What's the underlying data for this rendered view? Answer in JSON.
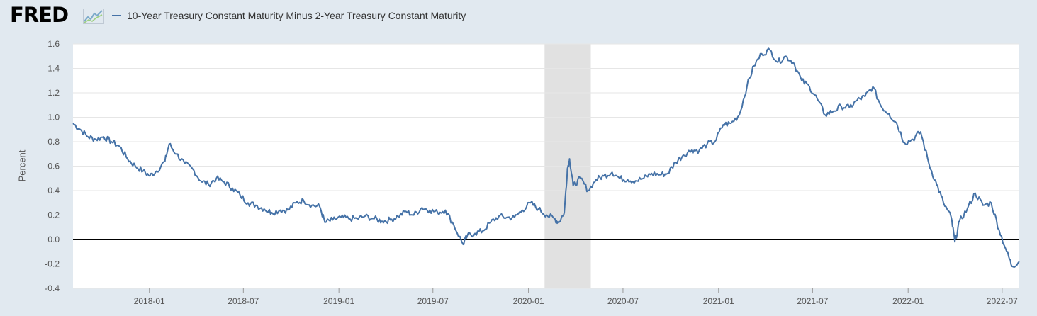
{
  "brand": {
    "name": "FRED",
    "icon": "line-chart-icon"
  },
  "colors": {
    "background": "#e1e9f0",
    "plot_background": "#ffffff",
    "series": "#4572a7",
    "recession": "#e1e1e1",
    "zero_line": "#000000"
  },
  "chart_data": {
    "type": "line",
    "title": "",
    "xlabel": "",
    "ylabel": "Percent",
    "grid": true,
    "legend_position": "top-left",
    "ylim": [
      -0.4,
      1.6
    ],
    "xlim": [
      "2017-08-07",
      "2022-08-03"
    ],
    "yticks": [
      "1.6",
      "1.4",
      "1.2",
      "1.0",
      "0.8",
      "0.6",
      "0.4",
      "0.2",
      "0.0",
      "-0.2",
      "-0.4"
    ],
    "xticks": [
      "2018-01",
      "2018-07",
      "2019-01",
      "2019-07",
      "2020-01",
      "2020-07",
      "2021-01",
      "2021-07",
      "2022-01",
      "2022-07"
    ],
    "reference_line": {
      "y": 0.0
    },
    "recession_shading": [
      {
        "start": "2020-02-01",
        "end": "2020-04-30"
      }
    ],
    "series": [
      {
        "name": "10-Year Treasury Constant Maturity Minus 2-Year Treasury Constant Maturity",
        "points": [
          [
            "2017-08-07",
            0.95
          ],
          [
            "2017-08-21",
            0.9
          ],
          [
            "2017-09-05",
            0.84
          ],
          [
            "2017-09-20",
            0.82
          ],
          [
            "2017-10-05",
            0.84
          ],
          [
            "2017-10-20",
            0.8
          ],
          [
            "2017-11-05",
            0.76
          ],
          [
            "2017-11-20",
            0.66
          ],
          [
            "2017-12-05",
            0.6
          ],
          [
            "2017-12-20",
            0.56
          ],
          [
            "2018-01-02",
            0.52
          ],
          [
            "2018-01-15",
            0.56
          ],
          [
            "2018-01-31",
            0.64
          ],
          [
            "2018-02-08",
            0.78
          ],
          [
            "2018-02-22",
            0.7
          ],
          [
            "2018-03-10",
            0.62
          ],
          [
            "2018-03-25",
            0.58
          ],
          [
            "2018-04-10",
            0.48
          ],
          [
            "2018-04-25",
            0.45
          ],
          [
            "2018-05-10",
            0.5
          ],
          [
            "2018-05-25",
            0.47
          ],
          [
            "2018-06-10",
            0.42
          ],
          [
            "2018-06-25",
            0.36
          ],
          [
            "2018-07-10",
            0.3
          ],
          [
            "2018-07-25",
            0.28
          ],
          [
            "2018-08-10",
            0.25
          ],
          [
            "2018-08-25",
            0.22
          ],
          [
            "2018-09-10",
            0.24
          ],
          [
            "2018-09-25",
            0.24
          ],
          [
            "2018-10-10",
            0.3
          ],
          [
            "2018-10-25",
            0.32
          ],
          [
            "2018-11-10",
            0.28
          ],
          [
            "2018-11-25",
            0.27
          ],
          [
            "2018-12-05",
            0.14
          ],
          [
            "2018-12-20",
            0.16
          ],
          [
            "2019-01-05",
            0.18
          ],
          [
            "2019-01-20",
            0.17
          ],
          [
            "2019-02-05",
            0.17
          ],
          [
            "2019-02-20",
            0.19
          ],
          [
            "2019-03-10",
            0.17
          ],
          [
            "2019-03-25",
            0.15
          ],
          [
            "2019-04-10",
            0.16
          ],
          [
            "2019-04-25",
            0.19
          ],
          [
            "2019-05-10",
            0.23
          ],
          [
            "2019-05-25",
            0.2
          ],
          [
            "2019-06-10",
            0.26
          ],
          [
            "2019-06-25",
            0.24
          ],
          [
            "2019-07-10",
            0.22
          ],
          [
            "2019-07-25",
            0.24
          ],
          [
            "2019-08-10",
            0.12
          ],
          [
            "2019-08-28",
            -0.04
          ],
          [
            "2019-09-05",
            0.03
          ],
          [
            "2019-09-20",
            0.05
          ],
          [
            "2019-10-05",
            0.07
          ],
          [
            "2019-10-20",
            0.14
          ],
          [
            "2019-11-05",
            0.19
          ],
          [
            "2019-11-20",
            0.18
          ],
          [
            "2019-12-05",
            0.18
          ],
          [
            "2019-12-20",
            0.24
          ],
          [
            "2020-01-05",
            0.3
          ],
          [
            "2020-01-20",
            0.25
          ],
          [
            "2020-02-05",
            0.2
          ],
          [
            "2020-02-20",
            0.17
          ],
          [
            "2020-02-28",
            0.14
          ],
          [
            "2020-03-10",
            0.22
          ],
          [
            "2020-03-16",
            0.58
          ],
          [
            "2020-03-20",
            0.66
          ],
          [
            "2020-03-27",
            0.44
          ],
          [
            "2020-04-10",
            0.5
          ],
          [
            "2020-04-25",
            0.4
          ],
          [
            "2020-05-10",
            0.49
          ],
          [
            "2020-05-25",
            0.52
          ],
          [
            "2020-06-10",
            0.55
          ],
          [
            "2020-06-25",
            0.5
          ],
          [
            "2020-07-10",
            0.49
          ],
          [
            "2020-07-25",
            0.48
          ],
          [
            "2020-08-10",
            0.5
          ],
          [
            "2020-08-25",
            0.54
          ],
          [
            "2020-09-10",
            0.53
          ],
          [
            "2020-09-25",
            0.54
          ],
          [
            "2020-10-10",
            0.63
          ],
          [
            "2020-10-25",
            0.69
          ],
          [
            "2020-11-10",
            0.73
          ],
          [
            "2020-11-25",
            0.73
          ],
          [
            "2020-12-10",
            0.78
          ],
          [
            "2020-12-25",
            0.8
          ],
          [
            "2021-01-10",
            0.94
          ],
          [
            "2021-01-25",
            0.95
          ],
          [
            "2021-02-10",
            1.02
          ],
          [
            "2021-02-25",
            1.26
          ],
          [
            "2021-03-10",
            1.42
          ],
          [
            "2021-03-25",
            1.52
          ],
          [
            "2021-04-10",
            1.55
          ],
          [
            "2021-04-25",
            1.45
          ],
          [
            "2021-05-10",
            1.5
          ],
          [
            "2021-05-25",
            1.45
          ],
          [
            "2021-06-10",
            1.3
          ],
          [
            "2021-06-25",
            1.25
          ],
          [
            "2021-07-10",
            1.15
          ],
          [
            "2021-07-25",
            1.02
          ],
          [
            "2021-08-10",
            1.05
          ],
          [
            "2021-08-25",
            1.09
          ],
          [
            "2021-09-10",
            1.08
          ],
          [
            "2021-09-25",
            1.14
          ],
          [
            "2021-10-10",
            1.17
          ],
          [
            "2021-10-25",
            1.25
          ],
          [
            "2021-11-10",
            1.09
          ],
          [
            "2021-11-25",
            1.03
          ],
          [
            "2021-12-10",
            0.95
          ],
          [
            "2021-12-25",
            0.79
          ],
          [
            "2022-01-10",
            0.82
          ],
          [
            "2022-01-25",
            0.88
          ],
          [
            "2022-02-10",
            0.62
          ],
          [
            "2022-02-25",
            0.45
          ],
          [
            "2022-03-10",
            0.3
          ],
          [
            "2022-03-25",
            0.18
          ],
          [
            "2022-04-01",
            -0.02
          ],
          [
            "2022-04-10",
            0.15
          ],
          [
            "2022-04-25",
            0.25
          ],
          [
            "2022-05-10",
            0.38
          ],
          [
            "2022-05-25",
            0.28
          ],
          [
            "2022-06-10",
            0.3
          ],
          [
            "2022-06-25",
            0.08
          ],
          [
            "2022-07-10",
            -0.1
          ],
          [
            "2022-07-20",
            -0.22
          ],
          [
            "2022-08-03",
            -0.18
          ]
        ]
      }
    ]
  }
}
